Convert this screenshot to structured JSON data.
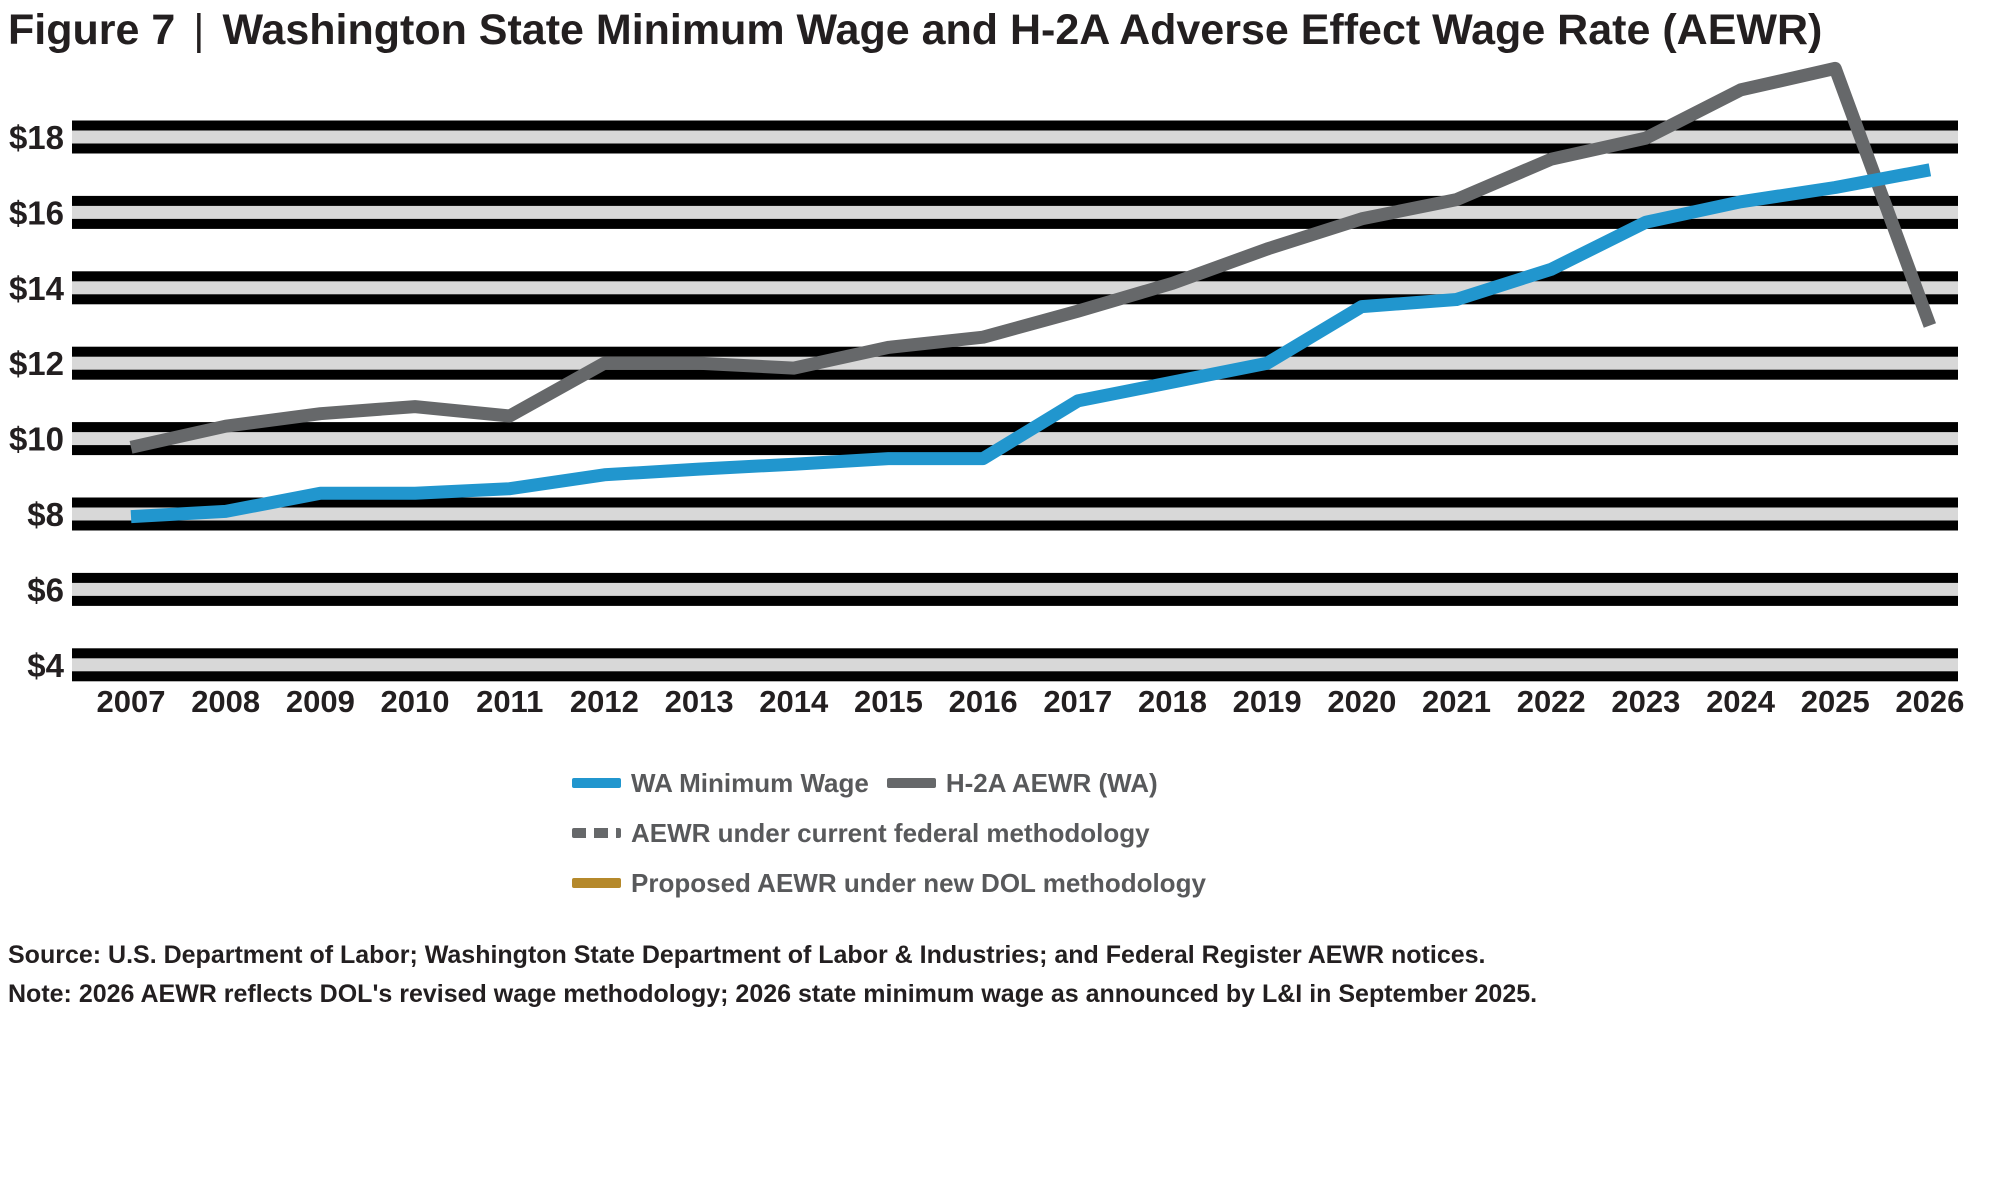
{
  "title": {
    "figure_label": "Figure 7",
    "separator": "|",
    "text": "Washington State Minimum Wage and H-2A Adverse Effect Wage Rate (AEWR)"
  },
  "chart_data": {
    "type": "line",
    "title": "Washington State Minimum Wage and H-2A Adverse Effect Wage Rate (AEWR)",
    "x": [
      2007,
      2008,
      2009,
      2010,
      2011,
      2012,
      2013,
      2014,
      2015,
      2016,
      2017,
      2018,
      2019,
      2020,
      2021,
      2022,
      2023,
      2024,
      2025,
      2026
    ],
    "series": [
      {
        "name": "WA Minimum Wage",
        "color": "#2196ce",
        "style": "solid",
        "values": [
          7.93,
          8.07,
          8.55,
          8.55,
          8.67,
          9.04,
          9.19,
          9.32,
          9.47,
          9.47,
          11.0,
          11.5,
          12.0,
          13.5,
          13.69,
          14.49,
          15.74,
          16.28,
          16.66,
          17.13
        ]
      },
      {
        "name": "H-2A AEWR (WA)",
        "color": "#66686a",
        "style": "solid",
        "values": [
          9.77,
          10.33,
          10.66,
          10.85,
          10.6,
          12.0,
          12.0,
          11.87,
          12.42,
          12.69,
          13.38,
          14.12,
          15.03,
          15.83,
          16.34,
          17.41,
          17.97,
          19.25,
          19.82,
          13.0
        ]
      }
    ],
    "xlabel": "",
    "ylabel": "",
    "ylim": [
      4,
      20
    ],
    "y_tick_labels": [
      "$18",
      "$16",
      "$14",
      "$12",
      "$10",
      "$8",
      "$6",
      "$4"
    ],
    "x_tick_labels": [
      "2007",
      "2008",
      "2009",
      "2010",
      "2011",
      "2012",
      "2013",
      "2014",
      "2015",
      "2016",
      "2017",
      "2018",
      "2019",
      "2020",
      "2021",
      "2022",
      "2023",
      "2024",
      "2025",
      "2026"
    ],
    "grid": "horizontal black bands with light gray gridlines",
    "legend_position": "bottom-center"
  },
  "legend": {
    "items": [
      {
        "row": 1,
        "label": "WA Minimum Wage",
        "color": "#2196ce",
        "style": "solid"
      },
      {
        "row": 1,
        "label": "H-2A AEWR (WA)",
        "color": "#66686a",
        "style": "solid"
      },
      {
        "row": 2,
        "label": "AEWR under current federal methodology",
        "color": "#66686a",
        "style": "dashed"
      },
      {
        "row": 3,
        "label": "Proposed AEWR under new DOL methodology",
        "color": "#b5892b",
        "style": "solid"
      }
    ]
  },
  "source_note": {
    "line1": "Source: U.S. Department of Labor; Washington State Department of Labor & Industries; and Federal Register AEWR notices.",
    "line2": "Note: 2026 AEWR reflects DOL's revised wage methodology; 2026 state minimum wage as announced by L&I in September 2025."
  },
  "colors": {
    "band": "#000000",
    "gridline": "#d8d8d8",
    "axis_text": "#231f20",
    "legend_text": "#58595b",
    "minimum_wage_line": "#2196ce",
    "aewr_line": "#66686a",
    "proposed_line": "#b5892b"
  }
}
